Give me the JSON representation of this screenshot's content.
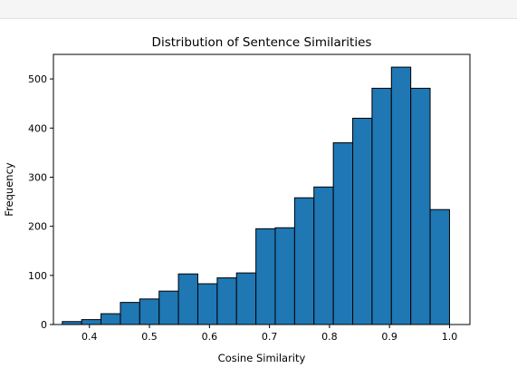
{
  "chart_data": {
    "type": "bar",
    "title": "Distribution of Sentence Similarities",
    "xlabel": "Cosine Similarity",
    "ylabel": "Frequency",
    "xlim": [
      0.34,
      1.034
    ],
    "ylim": [
      0,
      550
    ],
    "xticks": [
      "0.4",
      "0.5",
      "0.6",
      "0.7",
      "0.8",
      "0.9",
      "1.0"
    ],
    "xtick_values": [
      0.4,
      0.5,
      0.6,
      0.7,
      0.8,
      0.9,
      1.0
    ],
    "yticks": [
      "0",
      "100",
      "200",
      "300",
      "400",
      "500"
    ],
    "ytick_values": [
      0,
      100,
      200,
      300,
      400,
      500
    ],
    "bin_edges": [
      0.3548,
      0.3871,
      0.4193,
      0.4516,
      0.4838,
      0.5161,
      0.5483,
      0.5806,
      0.6129,
      0.6451,
      0.6774,
      0.7096,
      0.7419,
      0.7741,
      0.8064,
      0.8387,
      0.8709,
      0.9032,
      0.9354,
      0.9677,
      1.0
    ],
    "values": [
      6,
      10,
      22,
      45,
      52,
      68,
      103,
      83,
      95,
      105,
      195,
      197,
      258,
      280,
      370,
      420,
      481,
      524,
      481,
      234
    ],
    "bar_color": "#1f77b4",
    "edge_color": "#000000",
    "grid": false
  }
}
